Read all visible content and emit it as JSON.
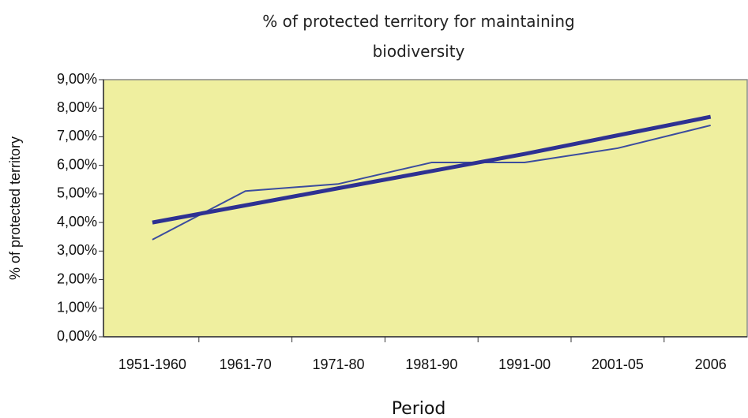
{
  "chart_data": {
    "type": "line",
    "title": "% of protected territory for maintaining biodiversity",
    "x_label": "Period",
    "y_label": "% of protected territory",
    "categories": [
      "1951-1960",
      "1961-70",
      "1971-80",
      "1981-90",
      "1991-00",
      "2001-05",
      "2006"
    ],
    "series": [
      {
        "color": "#3b4c9e",
        "values": [
          3.4,
          5.1,
          5.35,
          6.1,
          6.1,
          6.6,
          7.4
        ]
      },
      {
        "color": "#2e3192",
        "values": [
          4.0,
          4.6,
          5.2,
          5.8,
          6.4,
          7.05,
          7.7
        ]
      }
    ],
    "ylim": [
      0,
      9
    ],
    "yticks": [
      {
        "value": 0,
        "label": "0,00%"
      },
      {
        "value": 1,
        "label": "1,00%"
      },
      {
        "value": 2,
        "label": "2,00%"
      },
      {
        "value": 3,
        "label": "3,00%"
      },
      {
        "value": 4,
        "label": "4,00%"
      },
      {
        "value": 5,
        "label": "5,00%"
      },
      {
        "value": 6,
        "label": "6,00%"
      },
      {
        "value": 7,
        "label": "7,00%"
      },
      {
        "value": 8,
        "label": "8,00%"
      },
      {
        "value": 9,
        "label": "9,00%"
      }
    ],
    "plot_background": "#efef9f"
  }
}
